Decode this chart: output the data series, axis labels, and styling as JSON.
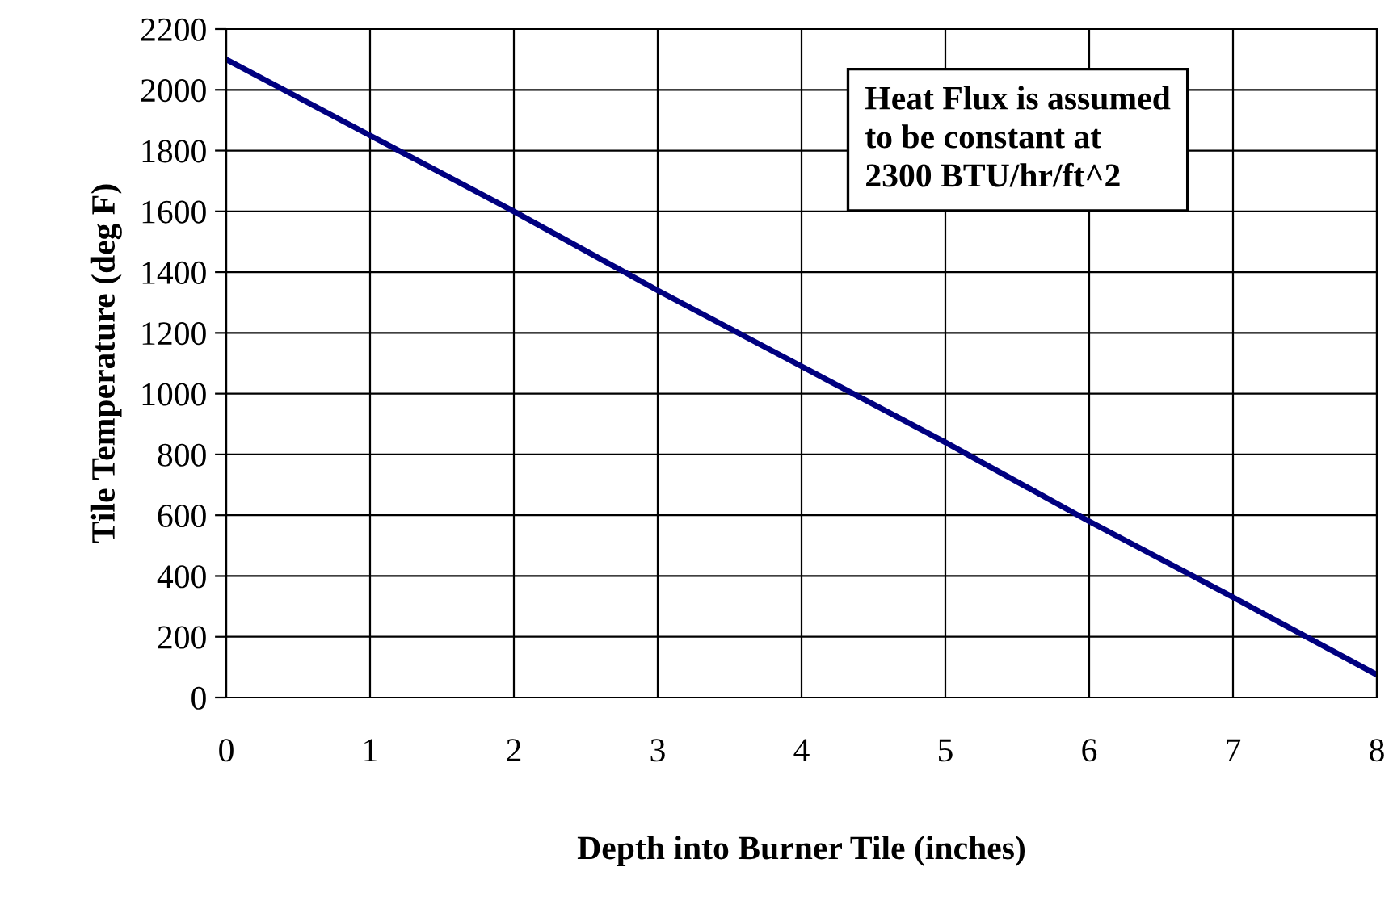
{
  "chart_data": {
    "type": "line",
    "xlabel": "Depth into Burner Tile (inches)",
    "ylabel": "Tile Temperature (deg F)",
    "x": [
      0,
      1,
      2,
      3,
      4,
      5,
      6,
      7,
      8
    ],
    "series": [
      {
        "color": "#000080",
        "values": [
          2100,
          1850,
          1600,
          1340,
          1090,
          840,
          580,
          330,
          75
        ]
      }
    ],
    "xlim": [
      0,
      8
    ],
    "xticks": [
      0,
      1,
      2,
      3,
      4,
      5,
      6,
      7,
      8
    ],
    "ylim": [
      0,
      2200
    ],
    "yticks": [
      0,
      200,
      400,
      600,
      800,
      1000,
      1200,
      1400,
      1600,
      1800,
      2000,
      2200
    ],
    "grid": true,
    "marker": "none",
    "line_style": "solid",
    "annotations": [
      "Heat Flux is assumed\nto be constant at\n2300 BTU/hr/ft^2"
    ]
  }
}
